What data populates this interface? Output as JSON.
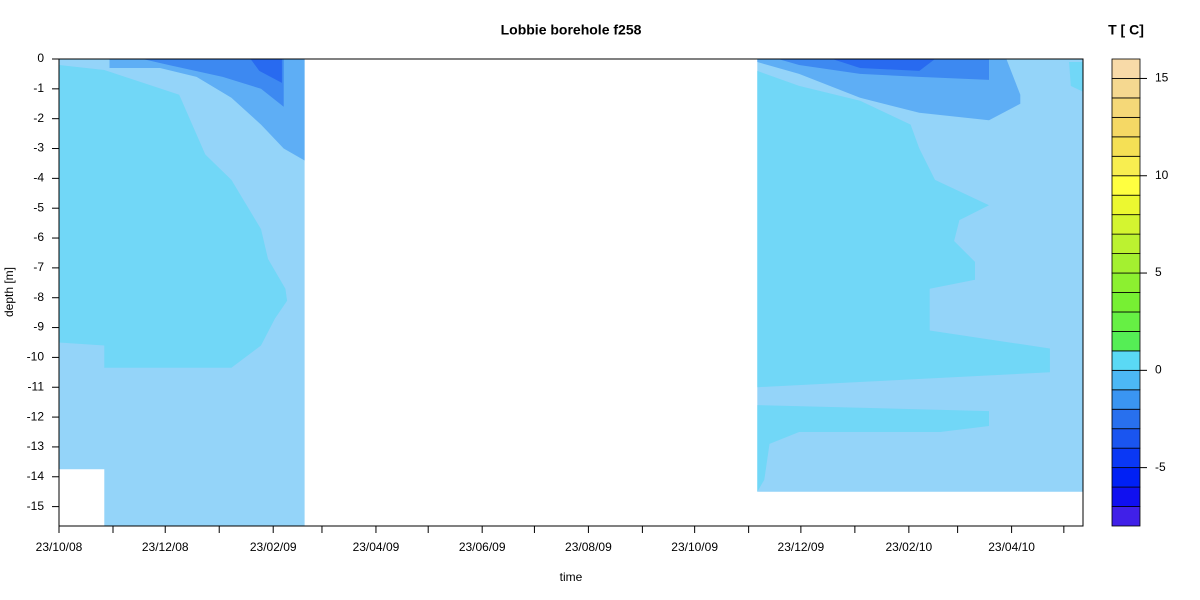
{
  "chart_data": {
    "type": "filled-contour",
    "title": "Lobbie borehole f258",
    "xlabel": "time",
    "ylabel": "depth [m]",
    "xlim": [
      "2008-10-23",
      "2010-06-03"
    ],
    "ylim": [
      -15.65,
      0
    ],
    "xticks": [
      {
        "value": "2008-10-23",
        "label": "23/10/08"
      },
      {
        "value": "2008-12-23",
        "label": "23/12/08"
      },
      {
        "value": "2009-02-23",
        "label": "23/02/09"
      },
      {
        "value": "2009-04-23",
        "label": "23/04/09"
      },
      {
        "value": "2009-06-23",
        "label": "23/06/09"
      },
      {
        "value": "2009-08-23",
        "label": "23/08/09"
      },
      {
        "value": "2009-10-23",
        "label": "23/10/09"
      },
      {
        "value": "2009-12-23",
        "label": "23/12/09"
      },
      {
        "value": "2010-02-23",
        "label": "23/02/10"
      },
      {
        "value": "2010-04-23",
        "label": "23/04/10"
      }
    ],
    "xminorticks": [
      "2008-11-23",
      "2009-01-23",
      "2009-03-23",
      "2009-05-23",
      "2009-07-23",
      "2009-09-23",
      "2009-11-23",
      "2010-01-23",
      "2010-03-23",
      "2010-05-23"
    ],
    "yticks": [
      0,
      -1,
      -2,
      -3,
      -4,
      -5,
      -6,
      -7,
      -8,
      -9,
      -10,
      -11,
      -12,
      -13,
      -14,
      -15
    ],
    "colorbar": {
      "title": "T [ C]",
      "levels": [
        -8,
        -7,
        -6,
        -5,
        -4,
        -3,
        -2,
        -1,
        0,
        1,
        2,
        3,
        4,
        5,
        6,
        7,
        8,
        9,
        10,
        11,
        12,
        13,
        14,
        15,
        16
      ],
      "colors": [
        "#4020e8",
        "#1010f0",
        "#0020f5",
        "#0a38f5",
        "#1a55f0",
        "#2870ee",
        "#3a95f2",
        "#4cb8f5",
        "#5ad9f5",
        "#55ee55",
        "#66f044",
        "#77f033",
        "#8cf030",
        "#a4f030",
        "#bcf230",
        "#d4f530",
        "#ecf830",
        "#ffff40",
        "#f8ee50",
        "#f5e055",
        "#f5d865",
        "#f5d878",
        "#f5d890",
        "#f8daa8"
      ],
      "ticks": [
        -5,
        0,
        5,
        10,
        15
      ]
    },
    "regions": [
      {
        "value": -0.5,
        "x": [
          "2008-10-23",
          "2009-03-13",
          "2009-03-13",
          "2008-11-18",
          "2008-11-18",
          "2008-10-23"
        ],
        "y": [
          0,
          0,
          -15.65,
          -15.65,
          -13.75,
          -13.75
        ]
      },
      {
        "value": 0.5,
        "x": [
          "2008-10-23",
          "2008-11-18",
          "2008-12-31",
          "2009-01-15",
          "2009-01-30",
          "2009-02-16",
          "2009-02-20",
          "2009-03-02",
          "2009-03-03",
          "2009-02-24",
          "2009-02-16",
          "2009-01-30",
          "2008-11-18",
          "2008-11-18",
          "2008-10-23"
        ],
        "y": [
          -0.2,
          -0.37,
          -1.2,
          -3.2,
          -4.05,
          -5.7,
          -6.7,
          -7.7,
          -8.1,
          -8.7,
          -9.6,
          -10.35,
          -10.35,
          -9.6,
          -9.5
        ]
      },
      {
        "value": -1.5,
        "x": [
          "2008-11-21",
          "2009-03-13",
          "2009-03-13",
          "2009-03-01",
          "2009-02-16",
          "2009-01-30",
          "2009-01-10",
          "2008-12-20",
          "2008-11-21"
        ],
        "y": [
          0,
          0,
          -3.4,
          -3.0,
          -2.2,
          -1.3,
          -0.6,
          -0.3,
          -0.3
        ]
      },
      {
        "value": -2.5,
        "x": [
          "2008-12-10",
          "2009-03-01",
          "2009-03-01",
          "2009-02-16",
          "2009-01-25",
          "2008-12-25"
        ],
        "y": [
          0,
          0,
          -1.6,
          -1.0,
          -0.6,
          -0.2
        ]
      },
      {
        "value": -3.5,
        "x": [
          "2009-02-10",
          "2009-02-28",
          "2009-02-28",
          "2009-02-15"
        ],
        "y": [
          0,
          0,
          -0.8,
          -0.4
        ]
      },
      {
        "value": -0.5,
        "x": [
          "2009-11-28",
          "2010-06-03",
          "2010-06-03",
          "2009-11-28"
        ],
        "y": [
          0,
          0,
          -14.5,
          -14.5
        ]
      },
      {
        "value": 0.5,
        "x": [
          "2009-11-28",
          "2009-12-22",
          "2010-01-26",
          "2010-02-24",
          "2010-03-01",
          "2010-03-10",
          "2010-04-10",
          "2010-03-24",
          "2010-03-21",
          "2010-04-02",
          "2010-04-02",
          "2010-03-07",
          "2010-03-07",
          "2010-05-15",
          "2010-05-15",
          "2009-11-28"
        ],
        "y": [
          -0.4,
          -0.9,
          -1.4,
          -2.2,
          -3.0,
          -4.05,
          -4.9,
          -5.4,
          -6.1,
          -6.8,
          -7.4,
          -7.7,
          -9.1,
          -9.7,
          -10.5,
          -11.0
        ]
      },
      {
        "value": 0.5,
        "x": [
          "2009-11-28",
          "2010-04-10",
          "2010-04-10",
          "2010-03-13",
          "2009-12-22",
          "2009-12-05",
          "2009-12-02",
          "2009-11-28"
        ],
        "y": [
          -11.6,
          -11.8,
          -12.3,
          -12.5,
          -12.5,
          -12.9,
          -14.1,
          -14.5
        ]
      },
      {
        "value": -1.5,
        "x": [
          "2009-11-28",
          "2010-04-20",
          "2010-04-28",
          "2010-04-28",
          "2010-04-10",
          "2010-03-01",
          "2010-01-26",
          "2009-12-22",
          "2009-11-28"
        ],
        "y": [
          0,
          0,
          -1.2,
          -1.5,
          -2.05,
          -1.8,
          -1.3,
          -0.5,
          -0.1
        ]
      },
      {
        "value": -2.5,
        "x": [
          "2009-12-10",
          "2010-04-10",
          "2010-04-10",
          "2010-03-01",
          "2010-01-26",
          "2009-12-22"
        ],
        "y": [
          0,
          0,
          -0.7,
          -0.6,
          -0.5,
          -0.2
        ]
      },
      {
        "value": -3.5,
        "x": [
          "2010-01-10",
          "2010-03-10",
          "2010-03-01",
          "2010-01-26"
        ],
        "y": [
          0,
          0,
          -0.4,
          -0.3
        ]
      },
      {
        "value": 0.5,
        "x": [
          "2010-05-26",
          "2010-06-03",
          "2010-06-03",
          "2010-05-27"
        ],
        "y": [
          -0.1,
          -0.1,
          -1.1,
          -0.9
        ]
      }
    ]
  }
}
